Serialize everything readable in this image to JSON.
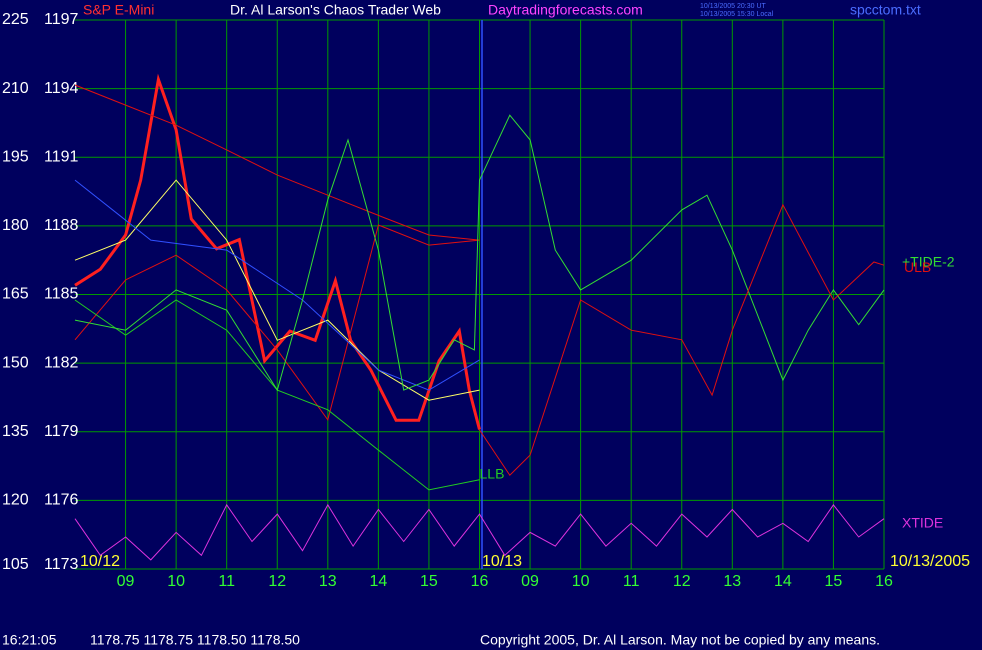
{
  "header": {
    "site": "Dr. Al Larson's Chaos Trader Web",
    "url": "Daytradingforecasts.com",
    "time_ut": "10/13/2005 20:30 UT",
    "time_local": "10/13/2005 15:30 Local",
    "file": "spcctom.txt"
  },
  "footer": {
    "time": "16:21:05",
    "quote": "1178.75 1178.75 1178.50 1178.50",
    "copyright": "Copyright 2005, Dr. Al Larson. May not be copied by any means."
  },
  "chart_data": {
    "type": "line",
    "title": "S&P E-Mini",
    "grid": true,
    "xlim": [
      0,
      16
    ],
    "xticks": [
      {
        "value": 1,
        "label": "09"
      },
      {
        "value": 2,
        "label": "10"
      },
      {
        "value": 3,
        "label": "11"
      },
      {
        "value": 4,
        "label": "12"
      },
      {
        "value": 5,
        "label": "13"
      },
      {
        "value": 6,
        "label": "14"
      },
      {
        "value": 7,
        "label": "15"
      },
      {
        "value": 8,
        "label": "16"
      },
      {
        "value": 9,
        "label": "09"
      },
      10,
      11,
      12,
      13,
      14,
      15,
      16
    ],
    "ylim": [
      105,
      225
    ],
    "yticks": [
      105,
      120,
      135,
      150,
      165,
      180,
      195,
      210,
      225
    ],
    "y2lim": [
      1173,
      1197
    ],
    "y2ticks": [
      1173,
      1176,
      1179,
      1182,
      1185,
      1188,
      1191,
      1194,
      1197
    ],
    "annotations": [
      "10/12",
      "10/13",
      "10/13/2005"
    ],
    "series": [
      {
        "color": "#ff2020",
        "axis": "y2",
        "x": [
          0,
          0.5,
          1,
          1.3,
          1.65,
          2,
          2.3,
          2.8,
          3.25,
          3.75,
          4.25,
          4.75,
          5.15,
          5.45,
          5.85,
          6.35,
          6.8,
          7.2,
          7.6,
          7.8,
          8
        ],
        "values": [
          1185.4,
          1186.1,
          1187.6,
          1190.0,
          1194.4,
          1192.2,
          1188.3,
          1187.0,
          1187.4,
          1182.1,
          1183.4,
          1183.0,
          1185.6,
          1183.0,
          1181.7,
          1179.5,
          1179.5,
          1182.1,
          1183.4,
          1180.8,
          1179.1
        ]
      },
      {
        "color": "#ffff66",
        "x": [
          0,
          1,
          2,
          3,
          4,
          5,
          6,
          7,
          8
        ],
        "values": [
          172.5,
          176.9,
          190.0,
          176.9,
          155.0,
          159.4,
          148.5,
          141.9,
          144.1
        ]
      },
      {
        "color": "#e01010",
        "x": [
          0,
          1,
          2,
          3,
          4,
          5,
          6,
          7,
          8
        ],
        "values": [
          210.8,
          206.4,
          202.0,
          196.6,
          191.1,
          186.7,
          182.3,
          178.0,
          176.9
        ]
      },
      {
        "color": "#e01010",
        "x": [
          0,
          1,
          2,
          3,
          4,
          5,
          6,
          7,
          8
        ],
        "values": [
          155.1,
          168.2,
          173.6,
          166.0,
          152.9,
          137.6,
          180.2,
          175.8,
          176.9
        ]
      },
      {
        "color": "#3050ff",
        "x": [
          0,
          1.5,
          3,
          4.5,
          6,
          7,
          8
        ],
        "values": [
          190.0,
          176.9,
          174.7,
          163.8,
          148.5,
          144.1,
          150.7
        ]
      },
      {
        "name": "LLB",
        "color": "#22cc22",
        "x": [
          0,
          1,
          2,
          3,
          4,
          5,
          6,
          7,
          8
        ],
        "values": [
          163.8,
          156.1,
          163.8,
          157.2,
          144.1,
          139.8,
          131.0,
          122.3,
          124.5
        ]
      },
      {
        "name": "+TIDE-2",
        "color": "#33dd33",
        "x": [
          0,
          1,
          2,
          3,
          4,
          4.5,
          5,
          5.4,
          6,
          6.5,
          7,
          7.5,
          7.9,
          8,
          8.6,
          9,
          9.5,
          10,
          11,
          12,
          12.5,
          13,
          14,
          14.5,
          15,
          15.5,
          16
        ],
        "values": [
          159.4,
          157.2,
          166.0,
          161.6,
          144.1,
          163.8,
          185.7,
          198.8,
          174.7,
          144.1,
          146.3,
          155.1,
          152.9,
          190.0,
          204.2,
          198.8,
          174.7,
          166.0,
          172.5,
          183.5,
          186.7,
          174.7,
          146.3,
          157.2,
          166.0,
          158.4,
          166.0
        ]
      },
      {
        "name": "ULB",
        "color": "#e01010",
        "x": [
          8,
          8.6,
          9,
          10,
          11,
          12,
          12.6,
          13,
          14,
          15,
          15.8,
          16
        ],
        "values": [
          135.4,
          125.5,
          129.9,
          163.8,
          157.2,
          155.1,
          143.0,
          157.2,
          184.6,
          163.8,
          172.1,
          171.4
        ]
      },
      {
        "name": "XTIDE",
        "color": "#dd33dd",
        "x": [
          0,
          0.5,
          1,
          1.5,
          2,
          2.5,
          3,
          3.5,
          4,
          4.5,
          5,
          5.5,
          6,
          6.5,
          7,
          7.5,
          8,
          8.5,
          9,
          9.5,
          10,
          10.5,
          11,
          11.5,
          12,
          12.5,
          13,
          13.5,
          14,
          14.5,
          15,
          15.5,
          16
        ],
        "values": [
          116,
          108,
          112,
          107,
          113,
          108,
          119,
          111,
          117,
          109,
          119,
          110,
          118,
          111,
          118,
          110,
          117,
          108,
          113,
          110,
          117,
          110,
          115,
          110,
          117,
          112,
          118,
          112,
          115,
          111,
          119,
          112,
          116
        ]
      }
    ]
  }
}
